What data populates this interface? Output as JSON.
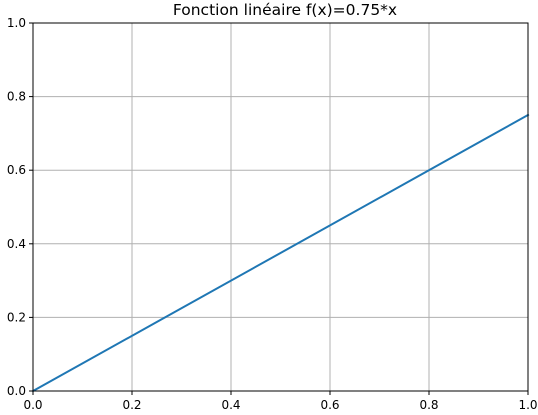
{
  "chart_data": {
    "type": "line",
    "title": "Fonction linéaire f(x)=0.75*x",
    "xlabel": "",
    "ylabel": "",
    "xlim": [
      0.0,
      1.0
    ],
    "ylim": [
      0.0,
      1.0
    ],
    "x_ticks": [
      "0.0",
      "0.2",
      "0.4",
      "0.6",
      "0.8",
      "1.0"
    ],
    "y_ticks": [
      "0.0",
      "0.2",
      "0.4",
      "0.6",
      "0.8",
      "1.0"
    ],
    "grid": true,
    "legend": "none",
    "series": [
      {
        "x": [
          0.0,
          0.25,
          0.5,
          0.75,
          1.0
        ],
        "y": [
          0.0,
          0.1875,
          0.375,
          0.5625,
          0.75
        ],
        "color": "#1f77b4"
      }
    ],
    "colors": {
      "grid": "#b0b0b0",
      "axes": "#000000",
      "line": "#1f77b4"
    }
  }
}
